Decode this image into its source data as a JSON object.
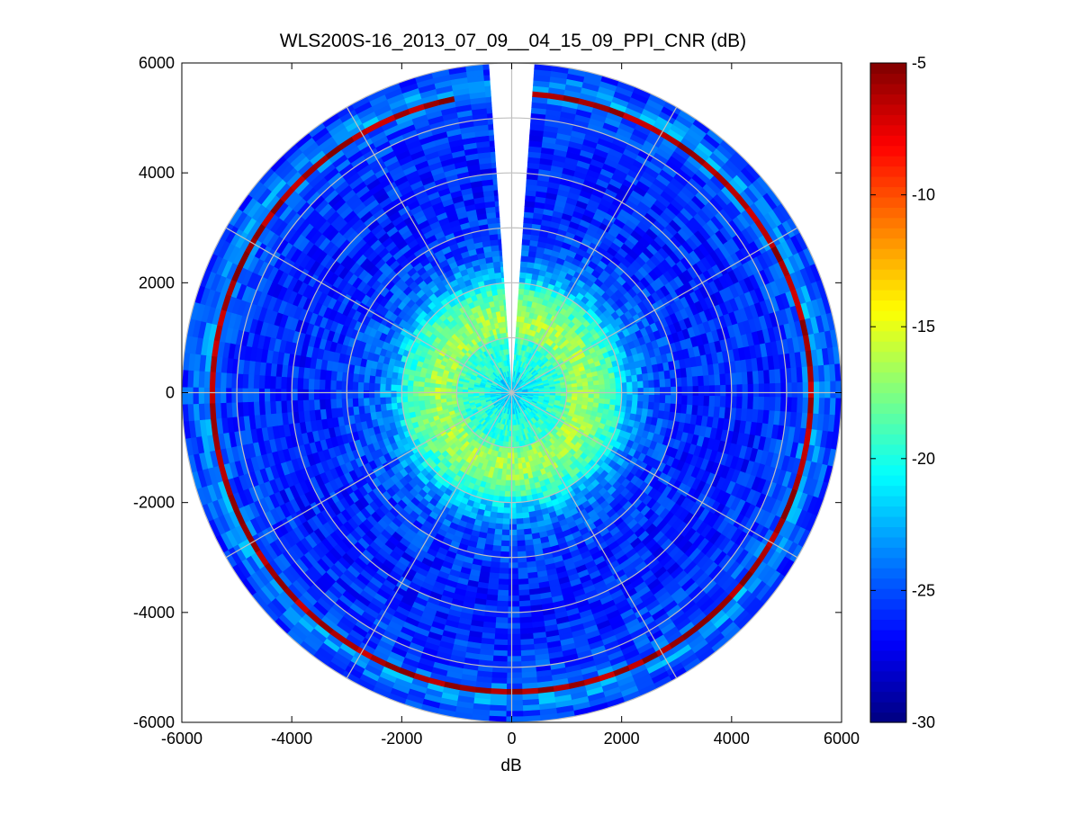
{
  "chart_data": {
    "type": "heatmap",
    "subtype": "polar-ppi",
    "title": "WLS200S-16_2013_07_09__04_15_09_PPI_CNR (dB)",
    "xlabel": "dB",
    "ylabel": "",
    "xlim": [
      -6000,
      6000
    ],
    "ylim": [
      -6000,
      6000
    ],
    "xticks": [
      "-6000",
      "-4000",
      "-2000",
      "0",
      "2000",
      "4000",
      "6000"
    ],
    "yticks": [
      "6000",
      "4000",
      "2000",
      "0",
      "-2000",
      "-4000",
      "-6000"
    ],
    "xtick_values": [
      -6000,
      -4000,
      -2000,
      0,
      2000,
      4000,
      6000
    ],
    "ytick_values": [
      6000,
      4000,
      2000,
      0,
      -2000,
      -4000,
      -6000
    ],
    "colormap": "jet",
    "clim": [
      -30,
      -5
    ],
    "colorbar_ticks": [
      "-5",
      "-10",
      "-15",
      "-20",
      "-25",
      "-30"
    ],
    "colorbar_tick_values": [
      -5,
      -10,
      -15,
      -20,
      -25,
      -30
    ],
    "max_range_m": 6000,
    "range_rings_m": [
      1000,
      2000,
      3000,
      4000,
      5000,
      6000
    ],
    "spoke_angles_deg": [
      0,
      30,
      60,
      90,
      120,
      150,
      180,
      210,
      240,
      270,
      300,
      330
    ],
    "missing_sector_deg": [
      -4,
      4
    ],
    "range_gate_m": 100,
    "azimuth_step_deg": 3,
    "grid": true,
    "radial_profile": {
      "range_m": [
        100,
        300,
        500,
        700,
        900,
        1100,
        1300,
        1500,
        1700,
        1900,
        2100,
        2500,
        3000,
        3500,
        4000,
        4500,
        5000,
        5200,
        5400,
        5600,
        5800,
        6000
      ],
      "cnr_db": [
        -22,
        -21,
        -20,
        -19.5,
        -19.5,
        -17,
        -16.5,
        -17,
        -18.5,
        -19.5,
        -22,
        -24.5,
        -25.5,
        -26,
        -26,
        -26,
        -25.5,
        -25.5,
        -24,
        -23,
        -25,
        -25.5
      ]
    },
    "strong_echo_arc": {
      "range_m": 5450,
      "cnr_db": -6,
      "azimuth_from_deg": 4,
      "azimuth_to_deg": 350
    }
  },
  "colors": {
    "axes": "#000000",
    "grid": "#c0c0c0",
    "background": "#ffffff",
    "no_data": "#ffffff"
  }
}
